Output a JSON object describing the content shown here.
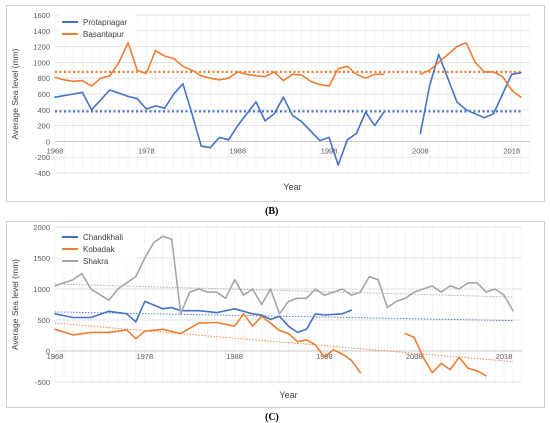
{
  "chart_data": [
    {
      "type": "line",
      "panel": "(B)",
      "xlabel": "Year",
      "ylabel": "Average Sea level (mm)",
      "xlim": [
        1968,
        2020
      ],
      "ylim": [
        -400,
        1600
      ],
      "xticks": [
        "1968",
        "1978",
        "1988",
        "1998",
        "2008",
        "2018"
      ],
      "yticks": [
        "-400",
        "-200",
        "0",
        "200",
        "400",
        "600",
        "800",
        "1000",
        "1200",
        "1400",
        "1600"
      ],
      "legend_position": "top-left",
      "grid": true,
      "series": [
        {
          "name": "Protapnagar",
          "color": "#4472c4",
          "segments": [
            [
              [
                1968,
                560
              ],
              [
                1970,
                600
              ],
              [
                1971,
                620
              ],
              [
                1972,
                400
              ],
              [
                1974,
                650
              ],
              [
                1976,
                570
              ],
              [
                1977,
                540
              ],
              [
                1978,
                410
              ],
              [
                1979,
                450
              ],
              [
                1980,
                420
              ],
              [
                1981,
                600
              ],
              [
                1982,
                730
              ],
              [
                1983,
                350
              ],
              [
                1984,
                -60
              ],
              [
                1985,
                -80
              ],
              [
                1986,
                50
              ],
              [
                1987,
                20
              ],
              [
                1988,
                200
              ],
              [
                1989,
                350
              ],
              [
                1990,
                500
              ],
              [
                1991,
                260
              ],
              [
                1992,
                350
              ],
              [
                1993,
                560
              ],
              [
                1994,
                330
              ],
              [
                1995,
                250
              ],
              [
                1996,
                130
              ],
              [
                1997,
                10
              ],
              [
                1998,
                50
              ],
              [
                1999,
                -300
              ],
              [
                2000,
                20
              ],
              [
                2001,
                100
              ],
              [
                2002,
                370
              ],
              [
                2003,
                200
              ],
              [
                2004,
                370
              ]
            ],
            [
              [
                2008,
                100
              ],
              [
                2009,
                700
              ],
              [
                2010,
                1100
              ],
              [
                2011,
                800
              ],
              [
                2012,
                500
              ],
              [
                2013,
                400
              ],
              [
                2014,
                350
              ],
              [
                2015,
                300
              ],
              [
                2016,
                350
              ],
              [
                2017,
                600
              ],
              [
                2018,
                850
              ],
              [
                2019,
                870
              ]
            ]
          ],
          "trend": [
            [
              1968,
              380
            ],
            [
              2019,
              380
            ]
          ]
        },
        {
          "name": "Basantapur",
          "color": "#ed7d31",
          "segments": [
            [
              [
                1968,
                810
              ],
              [
                1969,
                780
              ],
              [
                1970,
                760
              ],
              [
                1971,
                770
              ],
              [
                1972,
                700
              ],
              [
                1973,
                800
              ],
              [
                1974,
                830
              ],
              [
                1975,
                1000
              ],
              [
                1976,
                1250
              ],
              [
                1977,
                900
              ],
              [
                1978,
                860
              ],
              [
                1979,
                1150
              ],
              [
                1980,
                1080
              ],
              [
                1981,
                1050
              ],
              [
                1982,
                950
              ],
              [
                1983,
                900
              ],
              [
                1984,
                830
              ],
              [
                1985,
                800
              ],
              [
                1986,
                780
              ],
              [
                1987,
                800
              ],
              [
                1988,
                880
              ],
              [
                1989,
                850
              ],
              [
                1990,
                830
              ],
              [
                1991,
                820
              ],
              [
                1992,
                880
              ],
              [
                1993,
                770
              ],
              [
                1994,
                850
              ],
              [
                1995,
                840
              ],
              [
                1996,
                760
              ],
              [
                1997,
                720
              ],
              [
                1998,
                700
              ],
              [
                1999,
                920
              ],
              [
                2000,
                950
              ],
              [
                2001,
                850
              ],
              [
                2002,
                800
              ],
              [
                2003,
                850
              ],
              [
                2004,
                850
              ]
            ],
            [
              [
                2008,
                850
              ],
              [
                2009,
                900
              ],
              [
                2010,
                1000
              ],
              [
                2011,
                1100
              ],
              [
                2012,
                1200
              ],
              [
                2013,
                1250
              ],
              [
                2014,
                1000
              ],
              [
                2015,
                880
              ],
              [
                2016,
                880
              ],
              [
                2017,
                820
              ],
              [
                2018,
                650
              ],
              [
                2019,
                560
              ]
            ]
          ],
          "trend": [
            [
              1968,
              880
            ],
            [
              2019,
              880
            ]
          ]
        }
      ]
    },
    {
      "type": "line",
      "panel": "(C)",
      "xlabel": "Year",
      "ylabel": "Average Sea level (mm)",
      "xlim": [
        1968,
        2020
      ],
      "ylim": [
        -500,
        2000
      ],
      "xticks": [
        "1968",
        "1978",
        "1988",
        "1998",
        "2008",
        "2018"
      ],
      "yticks": [
        "-500",
        "0",
        "500",
        "1000",
        "1500",
        "2000"
      ],
      "legend_position": "top-left",
      "grid": true,
      "series": [
        {
          "name": "Chandkhali",
          "color": "#4472c4",
          "segments": [
            [
              [
                1968,
                600
              ],
              [
                1970,
                540
              ],
              [
                1972,
                540
              ],
              [
                1974,
                640
              ],
              [
                1976,
                600
              ],
              [
                1977,
                470
              ],
              [
                1978,
                800
              ],
              [
                1980,
                680
              ],
              [
                1981,
                700
              ],
              [
                1982,
                650
              ],
              [
                1984,
                650
              ],
              [
                1986,
                620
              ],
              [
                1988,
                680
              ],
              [
                1990,
                600
              ],
              [
                1991,
                580
              ],
              [
                1992,
                510
              ],
              [
                1993,
                560
              ],
              [
                1994,
                400
              ],
              [
                1995,
                300
              ],
              [
                1996,
                350
              ],
              [
                1997,
                600
              ],
              [
                1998,
                580
              ],
              [
                2000,
                600
              ],
              [
                2001,
                660
              ]
            ]
          ],
          "trend": [
            [
              1968,
              630
            ],
            [
              2019,
              490
            ]
          ]
        },
        {
          "name": "Kobadak",
          "color": "#ed7d31",
          "segments": [
            [
              [
                1968,
                350
              ],
              [
                1970,
                260
              ],
              [
                1972,
                300
              ],
              [
                1974,
                300
              ],
              [
                1976,
                340
              ],
              [
                1977,
                200
              ],
              [
                1978,
                320
              ],
              [
                1980,
                350
              ],
              [
                1982,
                280
              ],
              [
                1984,
                450
              ],
              [
                1986,
                460
              ],
              [
                1988,
                400
              ],
              [
                1989,
                600
              ],
              [
                1990,
                400
              ],
              [
                1991,
                560
              ],
              [
                1992,
                450
              ],
              [
                1993,
                330
              ],
              [
                1994,
                280
              ],
              [
                1995,
                150
              ],
              [
                1996,
                180
              ],
              [
                1997,
                100
              ],
              [
                1998,
                -100
              ],
              [
                1999,
                20
              ],
              [
                2000,
                -50
              ],
              [
                2001,
                -150
              ],
              [
                2002,
                -350
              ]
            ],
            [
              [
                2007,
                280
              ],
              [
                2008,
                220
              ],
              [
                2009,
                -100
              ],
              [
                2010,
                -350
              ],
              [
                2011,
                -200
              ],
              [
                2012,
                -300
              ],
              [
                2013,
                -100
              ],
              [
                2014,
                -280
              ],
              [
                2015,
                -320
              ],
              [
                2016,
                -400
              ]
            ]
          ],
          "trend": [
            [
              1968,
              450
            ],
            [
              2019,
              -170
            ]
          ]
        },
        {
          "name": "Shakra",
          "color": "#a5a5a5",
          "segments": [
            [
              [
                1968,
                1050
              ],
              [
                1970,
                1150
              ],
              [
                1971,
                1250
              ],
              [
                1972,
                1000
              ],
              [
                1974,
                820
              ],
              [
                1975,
                1000
              ],
              [
                1976,
                1100
              ],
              [
                1977,
                1200
              ],
              [
                1978,
                1500
              ],
              [
                1979,
                1750
              ],
              [
                1980,
                1850
              ],
              [
                1981,
                1800
              ],
              [
                1982,
                600
              ],
              [
                1983,
                950
              ],
              [
                1984,
                1000
              ],
              [
                1985,
                950
              ],
              [
                1986,
                950
              ],
              [
                1987,
                850
              ],
              [
                1988,
                1150
              ],
              [
                1989,
                900
              ],
              [
                1990,
                1000
              ],
              [
                1991,
                750
              ],
              [
                1992,
                1000
              ],
              [
                1993,
                600
              ],
              [
                1994,
                800
              ],
              [
                1995,
                850
              ],
              [
                1996,
                850
              ],
              [
                1997,
                1000
              ],
              [
                1998,
                900
              ],
              [
                2000,
                1000
              ],
              [
                2001,
                900
              ],
              [
                2002,
                950
              ],
              [
                2003,
                1200
              ],
              [
                2004,
                1150
              ],
              [
                2005,
                700
              ],
              [
                2006,
                800
              ],
              [
                2007,
                850
              ],
              [
                2008,
                950
              ],
              [
                2009,
                1000
              ],
              [
                2010,
                1050
              ],
              [
                2011,
                950
              ],
              [
                2012,
                1050
              ],
              [
                2013,
                1000
              ],
              [
                2014,
                1100
              ],
              [
                2015,
                1100
              ],
              [
                2016,
                950
              ],
              [
                2017,
                1000
              ],
              [
                2018,
                900
              ],
              [
                2019,
                650
              ]
            ]
          ],
          "trend": [
            [
              1968,
              1080
            ],
            [
              2019,
              870
            ]
          ]
        }
      ]
    }
  ]
}
